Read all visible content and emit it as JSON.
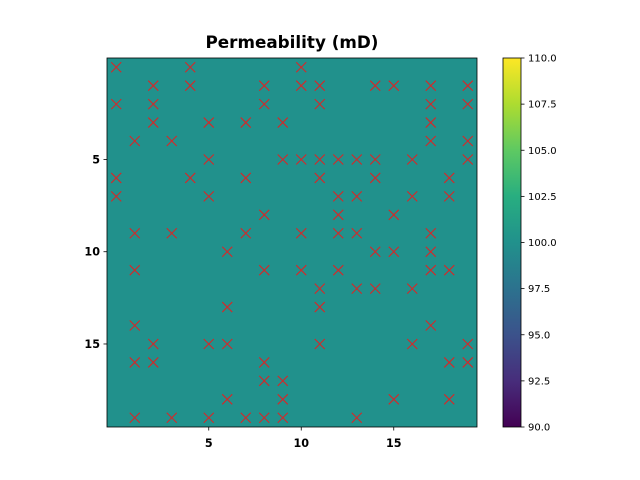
{
  "chart_data": {
    "type": "heatmap",
    "title": "Permeability (mD)",
    "xlabel": "",
    "ylabel": "",
    "grid_size": [
      20,
      20
    ],
    "cell_value": 100.0,
    "cell_color": "#21918c",
    "x_range": [
      -0.5,
      19.5
    ],
    "y_range": [
      -0.5,
      19.5
    ],
    "y_inverted": true,
    "x_ticks": [
      5,
      10,
      15
    ],
    "y_ticks": [
      5,
      10,
      15
    ],
    "x_tick_labels": [
      "5",
      "10",
      "15"
    ],
    "y_tick_labels": [
      "5",
      "10",
      "15"
    ],
    "colorbar": {
      "colormap": "viridis",
      "range": [
        90.0,
        110.0
      ],
      "ticks": [
        90.0,
        92.5,
        95.0,
        97.5,
        100.0,
        102.5,
        105.0,
        107.5,
        110.0
      ],
      "tick_labels": [
        "90.0",
        "92.5",
        "95.0",
        "97.5",
        "100.0",
        "102.5",
        "105.0",
        "107.5",
        "110.0"
      ]
    },
    "markers": {
      "style": "x",
      "color": "#d62728",
      "points": [
        [
          0,
          0
        ],
        [
          4,
          0
        ],
        [
          10,
          0
        ],
        [
          2,
          1
        ],
        [
          4,
          1
        ],
        [
          8,
          1
        ],
        [
          10,
          1
        ],
        [
          11,
          1
        ],
        [
          14,
          1
        ],
        [
          15,
          1
        ],
        [
          17,
          1
        ],
        [
          19,
          1
        ],
        [
          0,
          2
        ],
        [
          2,
          2
        ],
        [
          8,
          2
        ],
        [
          11,
          2
        ],
        [
          17,
          2
        ],
        [
          19,
          2
        ],
        [
          2,
          3
        ],
        [
          5,
          3
        ],
        [
          7,
          3
        ],
        [
          9,
          3
        ],
        [
          17,
          3
        ],
        [
          1,
          4
        ],
        [
          3,
          4
        ],
        [
          17,
          4
        ],
        [
          19,
          4
        ],
        [
          5,
          5
        ],
        [
          9,
          5
        ],
        [
          10,
          5
        ],
        [
          11,
          5
        ],
        [
          12,
          5
        ],
        [
          13,
          5
        ],
        [
          14,
          5
        ],
        [
          16,
          5
        ],
        [
          19,
          5
        ],
        [
          0,
          6
        ],
        [
          4,
          6
        ],
        [
          7,
          6
        ],
        [
          11,
          6
        ],
        [
          14,
          6
        ],
        [
          18,
          6
        ],
        [
          0,
          7
        ],
        [
          5,
          7
        ],
        [
          12,
          7
        ],
        [
          13,
          7
        ],
        [
          16,
          7
        ],
        [
          18,
          7
        ],
        [
          8,
          8
        ],
        [
          12,
          8
        ],
        [
          15,
          8
        ],
        [
          1,
          9
        ],
        [
          3,
          9
        ],
        [
          7,
          9
        ],
        [
          10,
          9
        ],
        [
          12,
          9
        ],
        [
          13,
          9
        ],
        [
          17,
          9
        ],
        [
          6,
          10
        ],
        [
          14,
          10
        ],
        [
          15,
          10
        ],
        [
          17,
          10
        ],
        [
          1,
          11
        ],
        [
          8,
          11
        ],
        [
          10,
          11
        ],
        [
          12,
          11
        ],
        [
          17,
          11
        ],
        [
          18,
          11
        ],
        [
          11,
          12
        ],
        [
          13,
          12
        ],
        [
          14,
          12
        ],
        [
          16,
          12
        ],
        [
          6,
          13
        ],
        [
          11,
          13
        ],
        [
          1,
          14
        ],
        [
          17,
          14
        ],
        [
          2,
          15
        ],
        [
          5,
          15
        ],
        [
          6,
          15
        ],
        [
          11,
          15
        ],
        [
          16,
          15
        ],
        [
          19,
          15
        ],
        [
          1,
          16
        ],
        [
          2,
          16
        ],
        [
          8,
          16
        ],
        [
          18,
          16
        ],
        [
          19,
          16
        ],
        [
          8,
          17
        ],
        [
          9,
          17
        ],
        [
          6,
          18
        ],
        [
          9,
          18
        ],
        [
          15,
          18
        ],
        [
          18,
          18
        ],
        [
          1,
          19
        ],
        [
          3,
          19
        ],
        [
          5,
          19
        ],
        [
          7,
          19
        ],
        [
          8,
          19
        ],
        [
          9,
          19
        ],
        [
          13,
          19
        ]
      ]
    }
  }
}
